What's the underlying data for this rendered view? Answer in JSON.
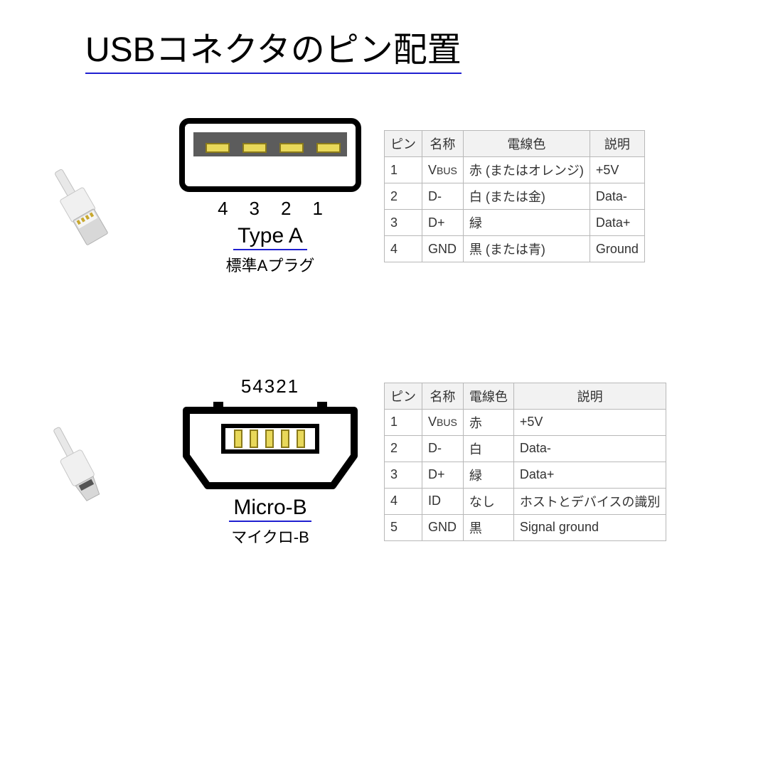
{
  "title": "USBコネクタのピン配置",
  "typeA": {
    "connectorLabel": "Type A",
    "connectorSublabel": "標準Aプラグ",
    "pinNumbers": [
      "4",
      "3",
      "2",
      "1"
    ],
    "diagram": {
      "outerFill": "#ffffff",
      "outerStroke": "#000000",
      "innerFill": "#5c5c5c",
      "pinFill": "#e8d85a",
      "pinStroke": "#8a7a1a"
    },
    "table": {
      "headers": [
        "ピン",
        "名称",
        "電線色",
        "説明"
      ],
      "rows": [
        [
          "1",
          "V<sub>BUS</sub>",
          "赤 (またはオレンジ)",
          "+5V"
        ],
        [
          "2",
          "D-",
          "白 (または金)",
          "Data-"
        ],
        [
          "3",
          "D+",
          "緑",
          "Data+"
        ],
        [
          "4",
          "GND",
          "黒 (または青)",
          "Ground"
        ]
      ]
    }
  },
  "microB": {
    "connectorLabel": "Micro-B",
    "connectorSublabel": "マイクロ-B",
    "pinNumbers": "54321",
    "diagram": {
      "outerFill": "#ffffff",
      "outerStroke": "#000000",
      "innerFill": "#ffffff",
      "pinFill": "#e8d85a",
      "pinStroke": "#8a7a1a"
    },
    "table": {
      "headers": [
        "ピン",
        "名称",
        "電線色",
        "説明"
      ],
      "rows": [
        [
          "1",
          "V<sub>BUS</sub>",
          "赤",
          "+5V"
        ],
        [
          "2",
          "D-",
          "白",
          "Data-"
        ],
        [
          "3",
          "D+",
          "緑",
          "Data+"
        ],
        [
          "4",
          "ID",
          "なし",
          "ホストとデバイスの識別"
        ],
        [
          "5",
          "GND",
          "黒",
          "Signal ground"
        ]
      ]
    }
  },
  "colors": {
    "underline": "#2020d0",
    "tableBorder": "#b8b8b8",
    "tableHeaderBg": "#f2f2f2"
  }
}
